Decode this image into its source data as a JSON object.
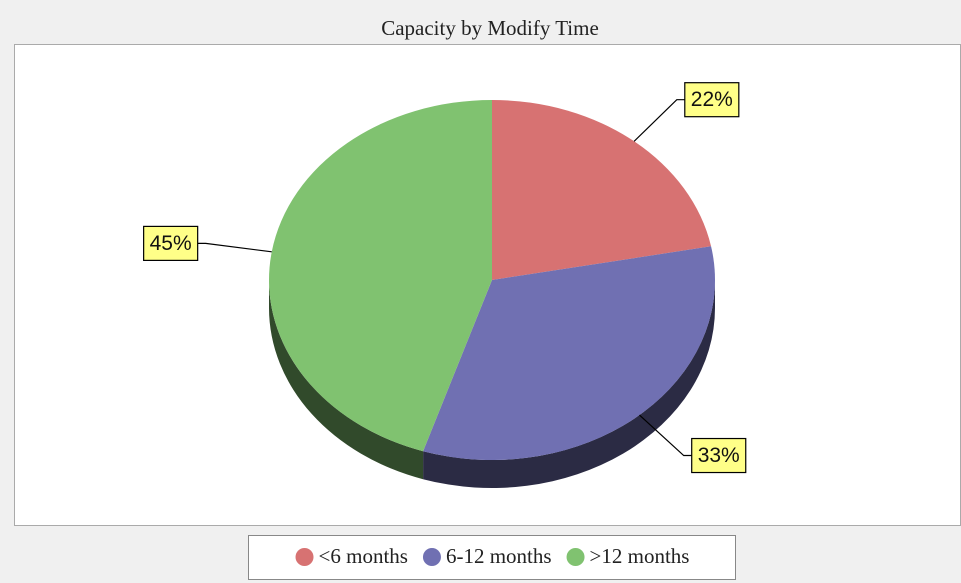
{
  "chart_data": {
    "type": "pie",
    "title": "Capacity by Modify Time",
    "categories": [
      "<6 months",
      "6-12 months",
      ">12 months"
    ],
    "values": [
      22,
      33,
      45
    ],
    "value_labels": [
      "22%",
      "33%",
      "45%"
    ],
    "colors": [
      "#d77272",
      "#7070b2",
      "#80c270"
    ],
    "legend": "bottom"
  }
}
